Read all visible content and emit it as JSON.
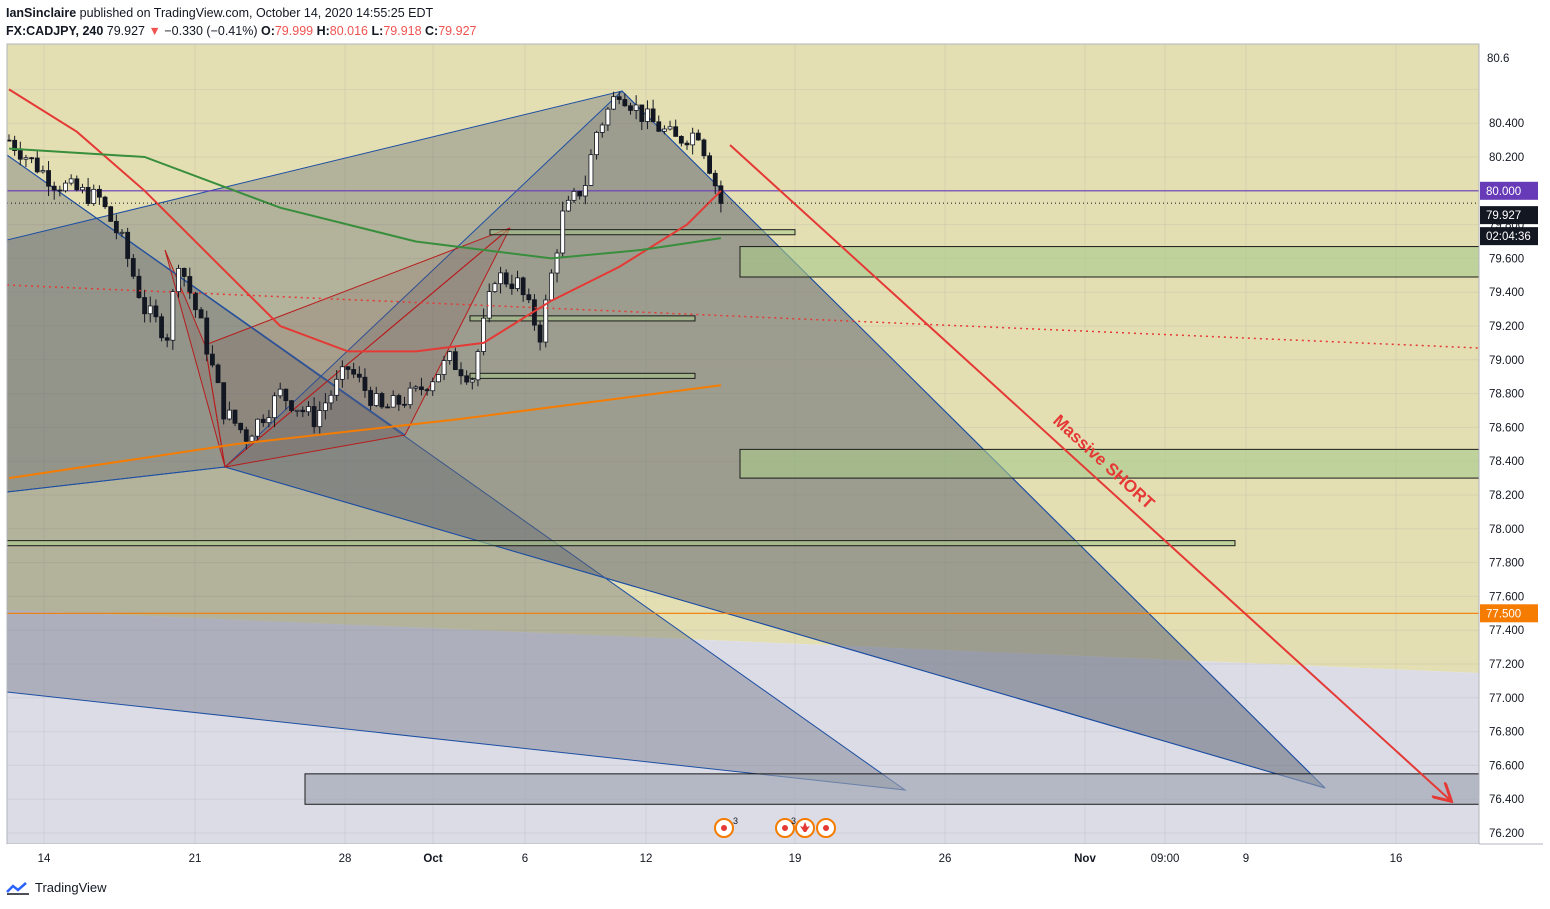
{
  "header": {
    "publisher": "IanSinclaire",
    "published_text": "published on TradingView.com, October 14, 2020 14:55:25 EDT",
    "symbol": "FX:CADJPY",
    "interval": "240",
    "last": "79.927",
    "change_arrow": "▼",
    "change": "−0.330 (−0.41%)",
    "o_label": "O:",
    "o": "79.999",
    "h_label": "H:",
    "h": "80.016",
    "l_label": "L:",
    "l": "79.918",
    "c_label": "C:",
    "c": "79.927"
  },
  "footer": {
    "brand": "TradingView"
  },
  "chart_data": {
    "type": "line",
    "symbol": "FX:CADJPY",
    "currency": "JPY",
    "y_ticks": [
      76.2,
      76.4,
      76.6,
      76.8,
      77.0,
      77.2,
      77.4,
      77.6,
      77.8,
      78.0,
      78.2,
      78.4,
      78.6,
      78.8,
      79.0,
      79.2,
      79.4,
      79.6,
      79.8,
      80.0,
      80.2,
      80.4,
      80.6
    ],
    "ylim": [
      76.13,
      80.73
    ],
    "x_ticks": [
      "14",
      "21",
      "28",
      "Oct",
      "6",
      "12",
      "19",
      "26",
      "Nov",
      "09:00",
      "9",
      "16"
    ],
    "price_badges": [
      {
        "label": "80.000",
        "value": 80.0,
        "color": "#673ab7"
      },
      {
        "label": "79.927",
        "value": 79.927,
        "color": "#131722"
      },
      {
        "label": "02:04:36",
        "value": 79.73,
        "color": "#131722"
      },
      {
        "label": "77.500",
        "value": 77.5,
        "color": "#f57c00"
      }
    ],
    "close_series": [
      {
        "x": 0,
        "y": 80.3
      },
      {
        "x": 2,
        "y": 80.05
      },
      {
        "x": 4,
        "y": 79.95
      },
      {
        "x": 5,
        "y": 79.7
      },
      {
        "x": 6,
        "y": 79.3
      },
      {
        "x": 7,
        "y": 79.15
      },
      {
        "x": 7.5,
        "y": 79.6
      },
      {
        "x": 8.5,
        "y": 79.2
      },
      {
        "x": 9.5,
        "y": 78.7
      },
      {
        "x": 10.5,
        "y": 78.55
      },
      {
        "x": 12,
        "y": 78.8
      },
      {
        "x": 13.5,
        "y": 78.65
      },
      {
        "x": 15,
        "y": 78.95
      },
      {
        "x": 16.5,
        "y": 78.7
      },
      {
        "x": 18,
        "y": 78.8
      },
      {
        "x": 19.5,
        "y": 79.0
      },
      {
        "x": 20.5,
        "y": 78.9
      },
      {
        "x": 21.5,
        "y": 79.5
      },
      {
        "x": 22.5,
        "y": 79.45
      },
      {
        "x": 23.5,
        "y": 79.15
      },
      {
        "x": 24.5,
        "y": 79.85
      },
      {
        "x": 25.5,
        "y": 80.05
      },
      {
        "x": 26,
        "y": 80.35
      },
      {
        "x": 27,
        "y": 80.6
      },
      {
        "x": 28,
        "y": 80.45
      },
      {
        "x": 29.5,
        "y": 80.3
      },
      {
        "x": 30.5,
        "y": 80.35
      },
      {
        "x": 31,
        "y": 80.15
      },
      {
        "x": 31.5,
        "y": 79.93
      }
    ],
    "moving_averages": [
      {
        "color": "#e53935",
        "points": [
          {
            "x": 0,
            "y": 80.6
          },
          {
            "x": 3,
            "y": 80.35
          },
          {
            "x": 6,
            "y": 80.0
          },
          {
            "x": 9,
            "y": 79.6
          },
          {
            "x": 12,
            "y": 79.2
          },
          {
            "x": 15,
            "y": 79.05
          },
          {
            "x": 18,
            "y": 79.05
          },
          {
            "x": 21,
            "y": 79.1
          },
          {
            "x": 24,
            "y": 79.35
          },
          {
            "x": 27,
            "y": 79.55
          },
          {
            "x": 30,
            "y": 79.8
          },
          {
            "x": 31.5,
            "y": 80.0
          }
        ]
      },
      {
        "color": "#388e3c",
        "points": [
          {
            "x": 0,
            "y": 80.25
          },
          {
            "x": 6,
            "y": 80.2
          },
          {
            "x": 12,
            "y": 79.9
          },
          {
            "x": 18,
            "y": 79.7
          },
          {
            "x": 24,
            "y": 79.6
          },
          {
            "x": 28,
            "y": 79.65
          },
          {
            "x": 31.5,
            "y": 79.72
          }
        ]
      },
      {
        "color": "#f57c00",
        "points": [
          {
            "x": 0,
            "y": 78.3
          },
          {
            "x": 10,
            "y": 78.5
          },
          {
            "x": 20,
            "y": 78.65
          },
          {
            "x": 31.5,
            "y": 78.85
          }
        ]
      }
    ],
    "horizontal_levels": [
      {
        "value": 80.0,
        "color": "#673ab7"
      },
      {
        "value": 77.5,
        "color": "#f57c00"
      }
    ],
    "zones": [
      {
        "from": 79.49,
        "to": 79.67
      },
      {
        "from": 78.3,
        "to": 78.47
      },
      {
        "from": 77.9,
        "to": 77.93
      },
      {
        "from": 76.37,
        "to": 76.55
      }
    ],
    "annotations": [
      {
        "text": "Massive SHORT",
        "color": "#e53935"
      }
    ],
    "event_markers": [
      "3",
      "3"
    ],
    "grid": true
  }
}
